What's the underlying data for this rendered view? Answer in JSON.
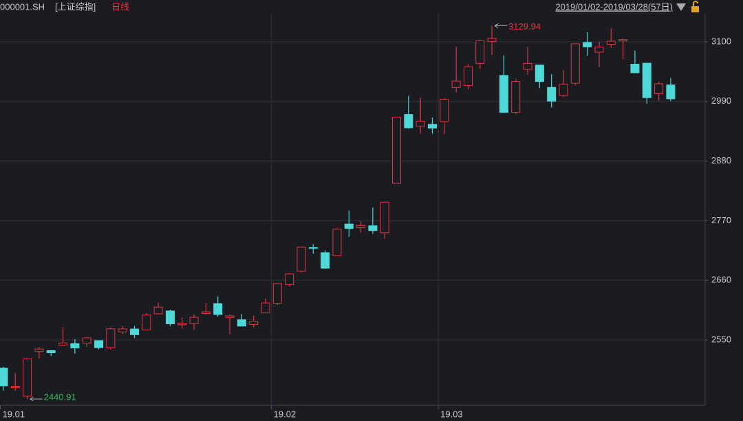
{
  "chart_data": {
    "type": "candlestick",
    "symbol": "000001.SH",
    "title": "[上证综指]",
    "period_label": "日线",
    "date_range": "2019/01/02-2019/03/28(57日)",
    "categories": [
      "19.01",
      null,
      null,
      null,
      null,
      null,
      null,
      null,
      null,
      null,
      null,
      null,
      null,
      null,
      null,
      null,
      null,
      null,
      null,
      null,
      null,
      null,
      null,
      "19.02",
      null,
      null,
      null,
      null,
      null,
      null,
      null,
      null,
      null,
      null,
      null,
      null,
      null,
      "19.03",
      null,
      null,
      null,
      null,
      null,
      null,
      null,
      null,
      null,
      null,
      null,
      null,
      null,
      null,
      null,
      null,
      null,
      null,
      null
    ],
    "open": [
      2497.88,
      2461.78,
      2446.02,
      2528.7,
      2530.3,
      2540.46,
      2543.12,
      2543.91,
      2548.68,
      2535.39,
      2564.66,
      2570.11,
      2568.58,
      2598.14,
      2603.47,
      2577.96,
      2579.94,
      2598.72,
      2617.02,
      2591.5,
      2587.2,
      2578.51,
      2599.8,
      2617.69,
      2652.11,
      2676.71,
      2720.35,
      2711.0,
      2705.32,
      2763.86,
      2757.09,
      2760.6,
      2747.76,
      2838.98,
      2966.13,
      2944.19,
      2947.76,
      2953.07,
      3015.94,
      3019.4,
      3060.35,
      3100.78,
      3038.11,
      2969.95,
      3049.24,
      3057.34,
      3016.02,
      3001.06,
      3023.7,
      3099.07,
      3081.07,
      3095.52,
      3101.75,
      3058.85,
      3060.71,
      3004.53,
      3020.63
    ],
    "high": [
      2500.28,
      2488.48,
      2515.32,
      2536.98,
      2531.35,
      2574.41,
      2551.31,
      2555.01,
      2549.21,
      2573.0,
      2575.48,
      2575.72,
      2598.98,
      2618.98,
      2605.87,
      2591.43,
      2597.12,
      2618.46,
      2630.3,
      2597.31,
      2597.75,
      2595.02,
      2626.43,
      2654.76,
      2673.58,
      2722.21,
      2726.61,
      2715.45,
      2756.68,
      2788.82,
      2768.95,
      2794.63,
      2804.32,
      2961.79,
      3000.34,
      2997.5,
      2960.39,
      2995.67,
      3090.8,
      3059.37,
      3103.85,
      3129.94,
      3075.47,
      3031.92,
      3090.91,
      3057.34,
      3040.31,
      3048.04,
      3096.42,
      3117.95,
      3100.09,
      3124.91,
      3105.76,
      3083.96,
      3060.71,
      3026.46,
      3033.22
    ],
    "low": [
      2456.42,
      2455.93,
      2440.91,
      2515.51,
      2520.16,
      2539.32,
      2524.55,
      2537.53,
      2532.33,
      2532.54,
      2560.73,
      2553.07,
      2568.58,
      2596.74,
      2575.66,
      2570.87,
      2568.85,
      2596.76,
      2593.23,
      2559.87,
      2575.08,
      2573.09,
      2599.8,
      2614.39,
      2648.69,
      2674.61,
      2709.06,
      2680.86,
      2705.32,
      2740.46,
      2747.96,
      2745.91,
      2736.91,
      2838.98,
      2939.67,
      2930.63,
      2930.72,
      2929.93,
      3006.78,
      3012.41,
      3050.11,
      3075.62,
      2969.58,
      2966.93,
      3039.18,
      3014.79,
      2979.23,
      2998.26,
      3019.92,
      3074.77,
      3053.81,
      3089.0,
      3067.35,
      3043.01,
      2985.64,
      2991.56,
      2990.91
    ],
    "close": [
      2465.29,
      2464.36,
      2514.87,
      2533.09,
      2526.46,
      2544.34,
      2535.1,
      2553.83,
      2535.77,
      2570.42,
      2570.34,
      2559.64,
      2596.01,
      2610.51,
      2579.7,
      2581.0,
      2591.69,
      2601.72,
      2596.98,
      2594.25,
      2575.58,
      2584.57,
      2618.23,
      2653.9,
      2671.89,
      2721.07,
      2719.7,
      2682.39,
      2754.36,
      2755.65,
      2761.22,
      2751.8,
      2804.23,
      2961.28,
      2941.52,
      2953.82,
      2940.95,
      2994.01,
      3027.58,
      3054.25,
      3102.1,
      3106.42,
      2969.86,
      3026.99,
      3060.31,
      3026.95,
      2990.69,
      3021.75,
      3096.42,
      3090.98,
      3090.64,
      3101.46,
      3104.15,
      3043.03,
      2997.1,
      3022.72,
      2994.94
    ],
    "up_color": "#e8333c",
    "down_color": "#4fd8d8",
    "max_annotation": 3129.94,
    "min_annotation": 2440.91,
    "max_color": "#e8333c",
    "min_color": "#2fbf5a",
    "ylim": [
      2429.5,
      3152
    ],
    "yticks": [
      2550,
      2660,
      2770,
      2880,
      2990,
      3100
    ],
    "grid": true
  }
}
